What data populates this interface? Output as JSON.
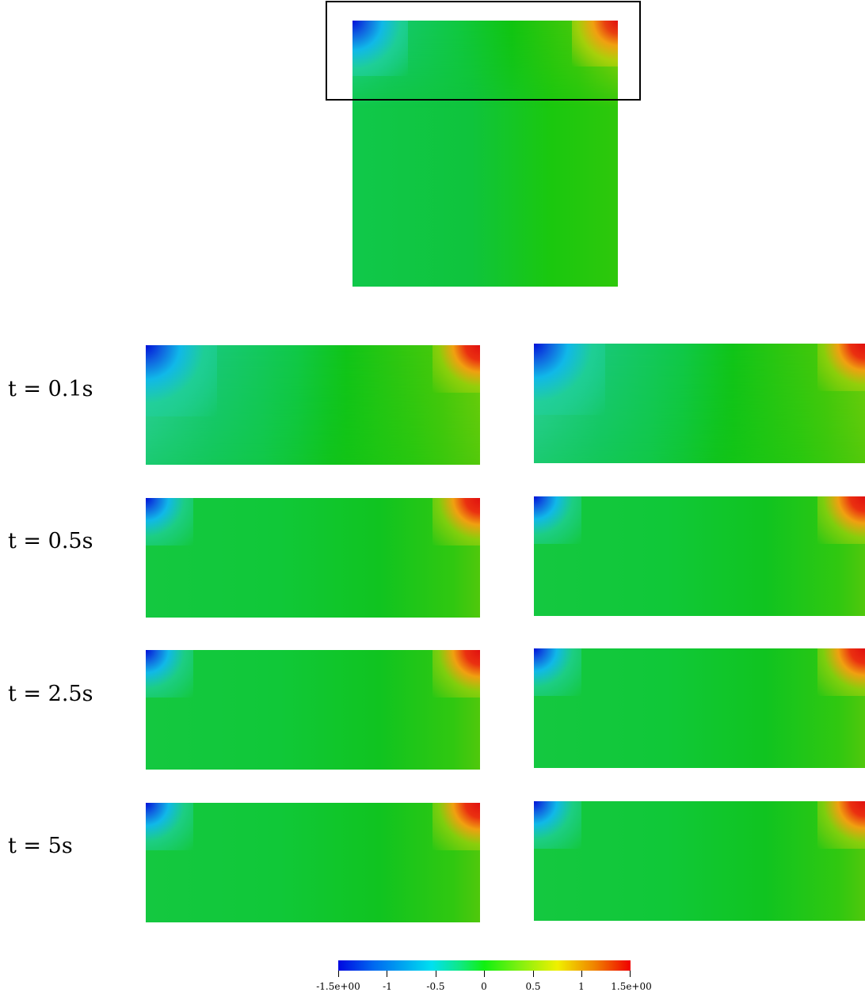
{
  "rows": [
    {
      "label": "t = 0.1s"
    },
    {
      "label": "t = 0.5s"
    },
    {
      "label": "t = 2.5s"
    },
    {
      "label": "t = 5s"
    }
  ],
  "colorbar": {
    "ticks": [
      "-1.5e+00",
      "-1",
      "-0.5",
      "0",
      "0.5",
      "1",
      "1.5e+00"
    ],
    "min": -1.5,
    "max": 1.5,
    "colors": [
      "#0008e0",
      "#00e0f0",
      "#10f010",
      "#f0f000",
      "#f00000"
    ]
  }
}
